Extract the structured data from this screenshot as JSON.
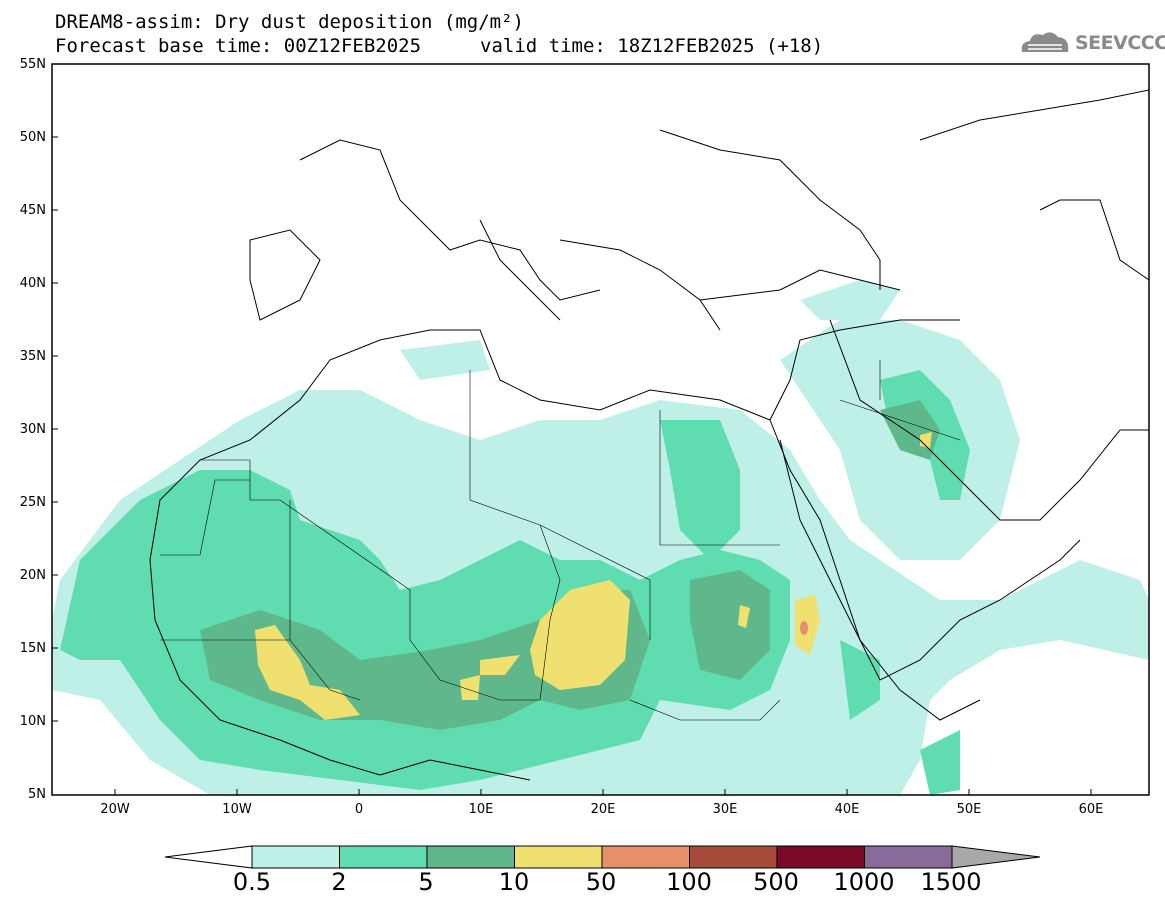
{
  "header": {
    "title_line1": "DREAM8-assim: Dry dust deposition (mg/m²)",
    "title_line2_base": "Forecast base time: 00Z12FEB2025",
    "title_line2_valid": "valid time: 18Z12FEB2025 (+18)",
    "logo_text": "SEEVCCC",
    "logo_icon": "cloud-icon"
  },
  "map": {
    "lon_range": [
      -25,
      65
    ],
    "lat_range": [
      5,
      55
    ],
    "lat_labels": [
      "55N",
      "50N",
      "45N",
      "40N",
      "35N",
      "30N",
      "25N",
      "20N",
      "15N",
      "10N",
      "5N"
    ],
    "lon_labels": [
      "20W",
      "10W",
      "0",
      "10E",
      "20E",
      "30E",
      "40E",
      "50E",
      "60E"
    ]
  },
  "colorbar": {
    "labels": [
      "0.5",
      "2",
      "5",
      "10",
      "50",
      "100",
      "500",
      "1000",
      "1500"
    ],
    "colors": [
      "#bff0e8",
      "#5fdcb0",
      "#5fb88c",
      "#f0e070",
      "#e8906a",
      "#a84a3a",
      "#7a0a28",
      "#8a6a9a",
      "#a8a8a8"
    ]
  }
}
